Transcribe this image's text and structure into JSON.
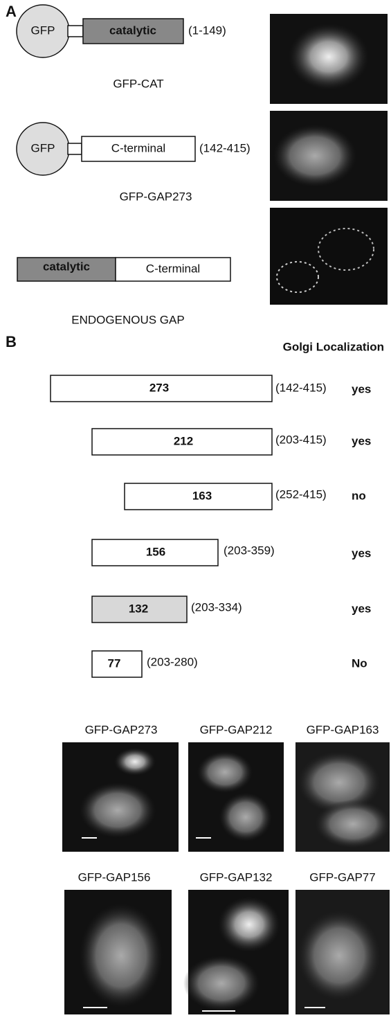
{
  "panel_a": {
    "label": "A",
    "constructs": [
      {
        "tag": "GFP",
        "domain": "catalytic",
        "residues": "(1-149)",
        "name": "GFP-CAT"
      },
      {
        "tag": "GFP",
        "domain": "C-terminal",
        "residues": "(142-415)",
        "name": "GFP-GAP273"
      },
      {
        "domains": [
          "catalytic",
          "C-terminal"
        ],
        "name": "ENDOGENOUS GAP"
      }
    ]
  },
  "panel_b": {
    "label": "B",
    "column_header": "Golgi Localization",
    "constructs": [
      {
        "name": "273",
        "residues": "(142-415)",
        "golgi": "yes"
      },
      {
        "name": "212",
        "residues": "(203-415)",
        "golgi": "yes"
      },
      {
        "name": "163",
        "residues": "(252-415)",
        "golgi": "no"
      },
      {
        "name": "156",
        "residues": "(203-359)",
        "golgi": "yes"
      },
      {
        "name": "132",
        "residues": "(203-334)",
        "golgi": "yes"
      },
      {
        "name": "77",
        "residues": "(203-280)",
        "golgi": "No"
      }
    ],
    "micrographs": [
      "GFP-GAP273",
      "GFP-GAP212",
      "GFP-GAP163",
      "GFP-GAP156",
      "GFP-GAP132",
      "GFP-GAP77"
    ]
  }
}
